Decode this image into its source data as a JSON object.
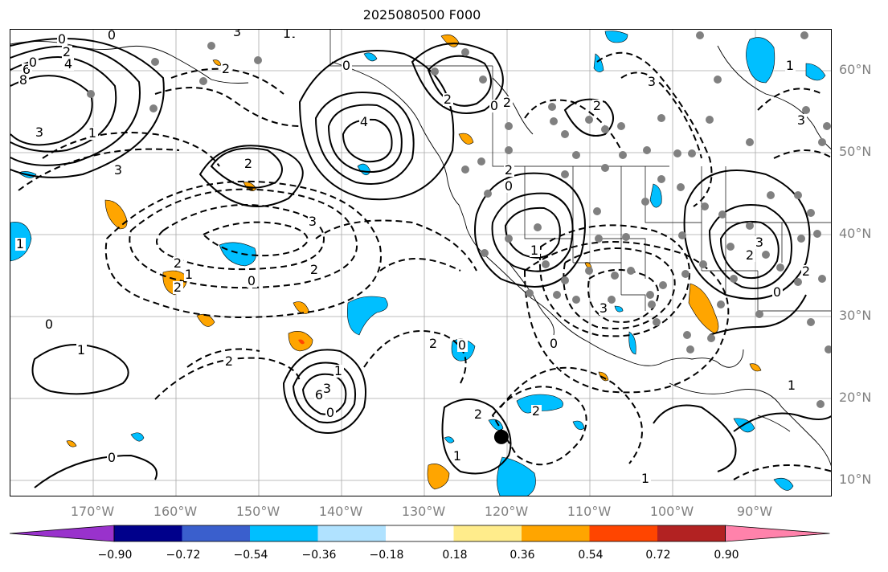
{
  "title": "2025080500 F000",
  "lat_labels": [
    "60°N",
    "50°N",
    "40°N",
    "30°N",
    "20°N",
    "10°N"
  ],
  "lon_labels": [
    "170°W",
    "160°W",
    "150°W",
    "140°W",
    "130°W",
    "120°W",
    "110°W",
    "100°W",
    "90°W"
  ],
  "colorbar": {
    "colors": [
      "#9932cc",
      "#00008b",
      "#3a5fcd",
      "#00bfff",
      "#b0e2ff",
      "#ffffff",
      "#ffec8b",
      "#ffa500",
      "#ff4500",
      "#b22222",
      "#ff82ab"
    ],
    "tick_labels": [
      "−0.90",
      "−0.72",
      "−0.54",
      "−0.36",
      "−0.18",
      "0.18",
      "0.36",
      "0.54",
      "0.72",
      "0.90"
    ]
  },
  "contour_labels": [
    "0",
    "2",
    "4",
    "6",
    "8",
    "3",
    "1",
    "0",
    "2",
    "3",
    "4",
    "2",
    "1",
    "0",
    "2",
    "3",
    "2",
    "1",
    "0",
    "2",
    "0",
    "2",
    "3",
    "2",
    "1",
    "0",
    "1",
    "0",
    "1",
    "2",
    "6",
    "3",
    "1",
    "0",
    "2",
    "0",
    "3",
    "0",
    "1",
    "0",
    "1",
    "0",
    "2",
    "1",
    "3",
    "2",
    "2",
    "3",
    "2",
    "0",
    "1",
    "2",
    "2",
    "1",
    "3"
  ],
  "storm_marker": {
    "lon": -120.5,
    "lat": 15.3
  }
}
